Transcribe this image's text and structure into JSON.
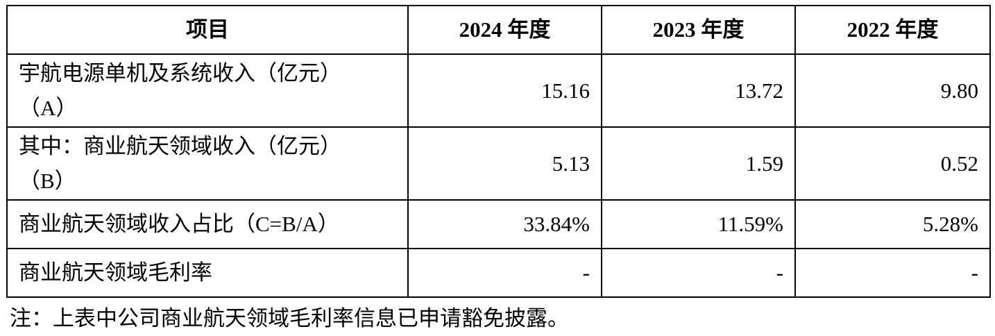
{
  "table": {
    "header": [
      "项目",
      "2024 年度",
      "2023 年度",
      "2022 年度"
    ],
    "rows": [
      [
        "宇航电源单机及系统收入（亿元）（A）",
        "15.16",
        "13.72",
        "9.80"
      ],
      [
        "其中：商业航天领域收入（亿元）（B）",
        "5.13",
        "1.59",
        "0.52"
      ],
      [
        "商业航天领域收入占比（C=B/A）",
        "33.84%",
        "11.59%",
        "5.28%"
      ],
      [
        "商业航天领域毛利率",
        "-",
        "-",
        "-"
      ]
    ]
  },
  "note": "注：上表中公司商业航天领域毛利率信息已申请豁免披露。"
}
